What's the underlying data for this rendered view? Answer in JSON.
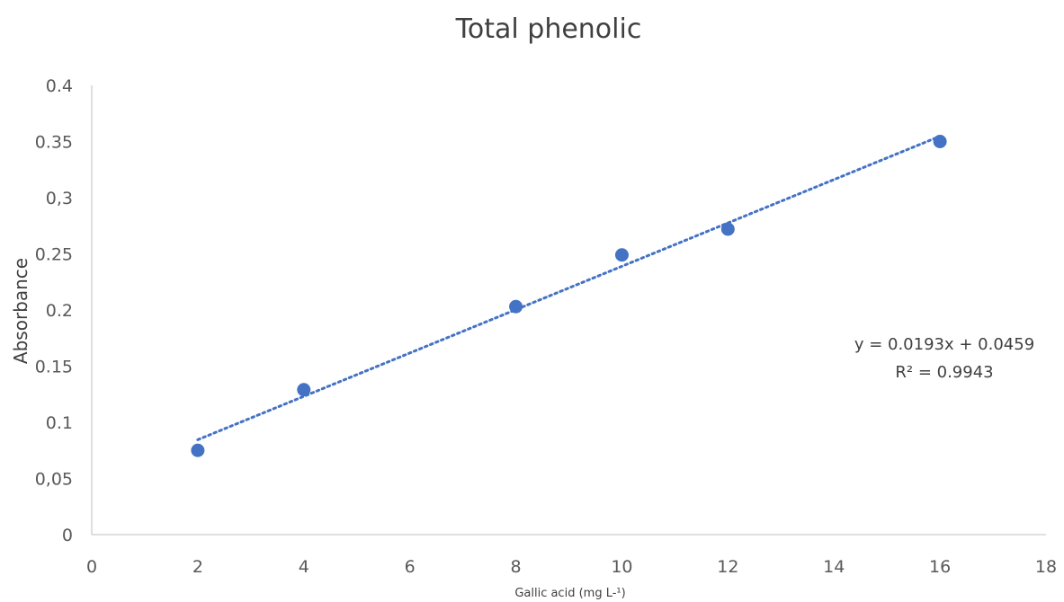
{
  "chart_data": {
    "type": "scatter",
    "title": "Total phenolic",
    "xlabel": "Gallic acid (mg L-¹)",
    "ylabel": "Absorbance",
    "xlim": [
      0,
      18
    ],
    "ylim": [
      0,
      0.4
    ],
    "x_ticks": [
      "0",
      "2",
      "4",
      "6",
      "8",
      "10",
      "12",
      "14",
      "16",
      "18"
    ],
    "y_ticks": [
      "0",
      "0,05",
      "0.1",
      "0.15",
      "0.2",
      "0.25",
      "0,3",
      "0.35",
      "0.4"
    ],
    "grid": false,
    "series": [
      {
        "x": [
          2,
          4,
          8,
          10,
          12,
          16
        ],
        "y": [
          0.075,
          0.129,
          0.203,
          0.249,
          0.272,
          0.35
        ],
        "color": "#4472C4"
      }
    ],
    "trendline": {
      "type": "linear",
      "slope": 0.0193,
      "intercept": 0.0459,
      "x_range": [
        2,
        16
      ],
      "style": "dotted",
      "color": "#4472C4",
      "equation_text": "y = 0.0193x + 0.0459",
      "r2_text": "R² = 0.9943"
    }
  }
}
